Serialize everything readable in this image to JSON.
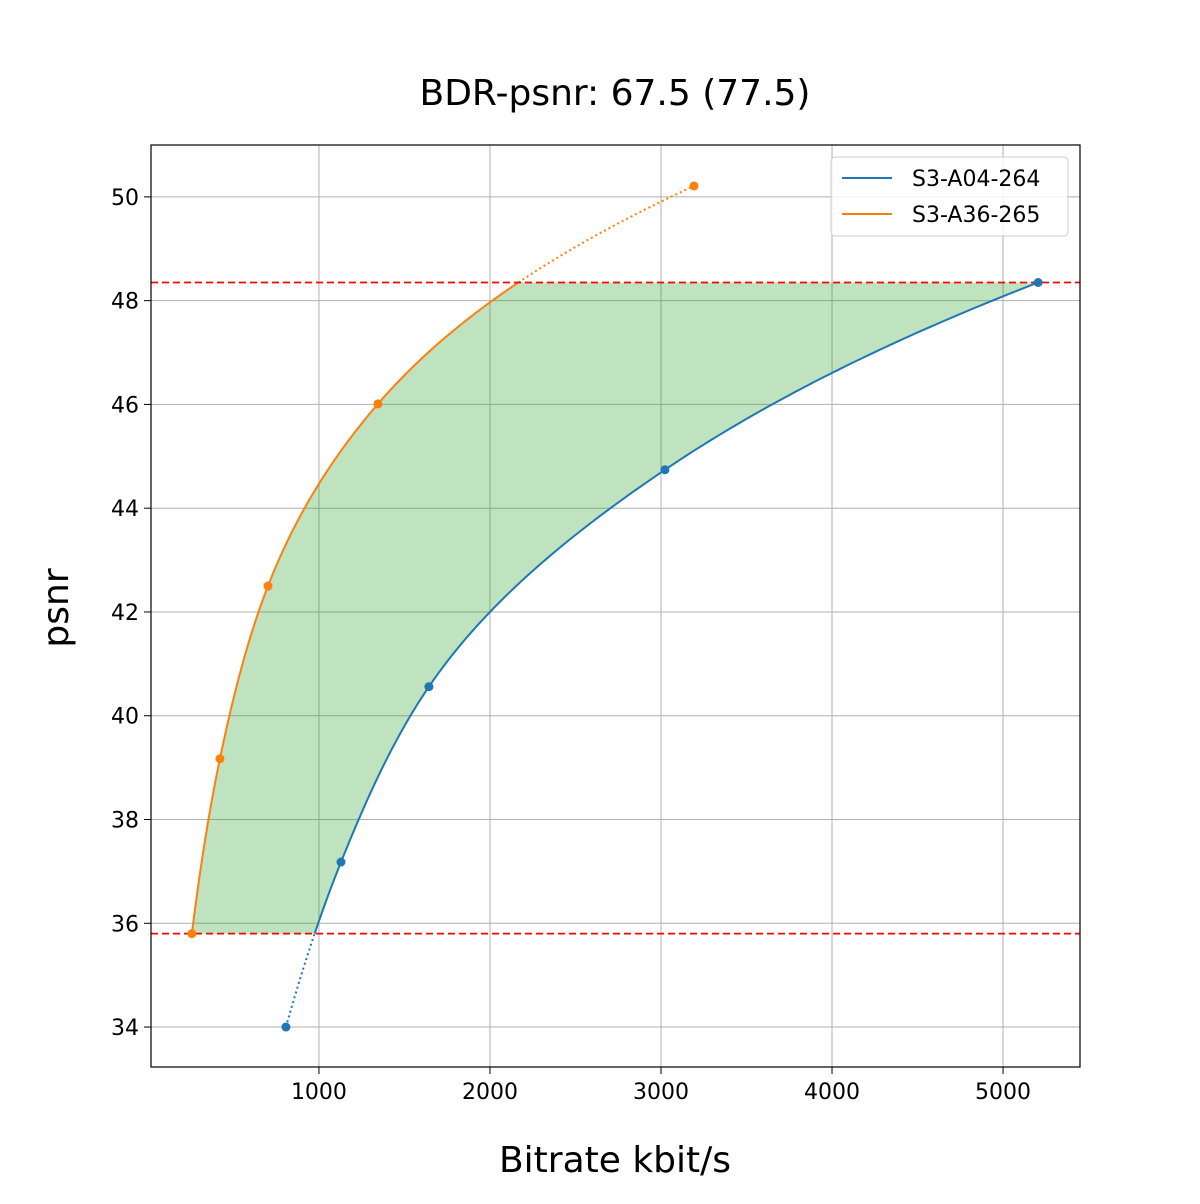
{
  "chart_data": {
    "type": "line",
    "title": "BDR-psnr: 67.5 (77.5)",
    "xlabel": "Bitrate kbit/s",
    "ylabel": "psnr",
    "xlim": [
      18,
      5450
    ],
    "ylim": [
      33.23,
      51.0
    ],
    "xticks": [
      1000,
      2000,
      3000,
      4000,
      5000
    ],
    "yticks": [
      34,
      36,
      38,
      40,
      42,
      44,
      46,
      48,
      50
    ],
    "grid": true,
    "legend_placement": "upper right",
    "series": [
      {
        "name": "S3-A04-264",
        "color": "#1f77b4",
        "x": [
          807,
          1129,
          1643,
          3023,
          5205
        ],
        "y": [
          34.0,
          37.18,
          40.56,
          44.74,
          48.35
        ]
      },
      {
        "name": "S3-A36-265",
        "color": "#ff7f0e",
        "x": [
          257,
          421,
          702,
          1345,
          3193
        ],
        "y": [
          35.8,
          39.17,
          42.5,
          46.01,
          50.21
        ]
      }
    ],
    "overlap_range_psnr": [
      35.8,
      48.35
    ],
    "overlap_line_color": "#ff0000",
    "fill_color": "#2ca02c"
  }
}
